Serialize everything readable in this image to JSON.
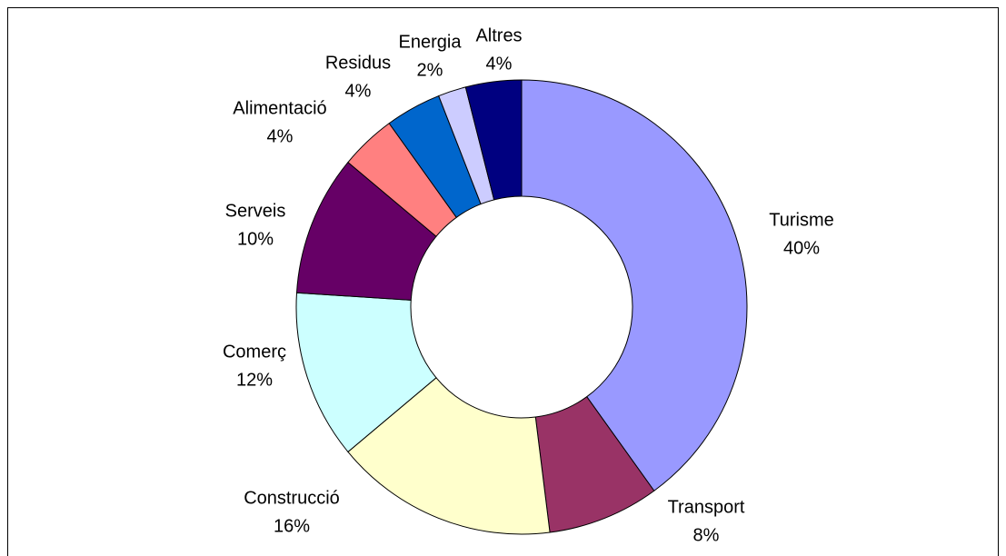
{
  "chart_data": {
    "type": "donut",
    "categories": [
      "Turisme",
      "Transport",
      "Construcció",
      "Comerç",
      "Serveis",
      "Alimentació",
      "Residus",
      "Energia",
      "Altres"
    ],
    "values": [
      40,
      8,
      16,
      12,
      10,
      4,
      4,
      2,
      4
    ],
    "value_labels": [
      "40%",
      "8%",
      "16%",
      "12%",
      "10%",
      "4%",
      "4%",
      "2%",
      "4%"
    ],
    "colors": [
      "#9999ff",
      "#993366",
      "#ffffcc",
      "#ccffff",
      "#660066",
      "#ff8080",
      "#0066cc",
      "#ccccff",
      "#000080"
    ]
  }
}
